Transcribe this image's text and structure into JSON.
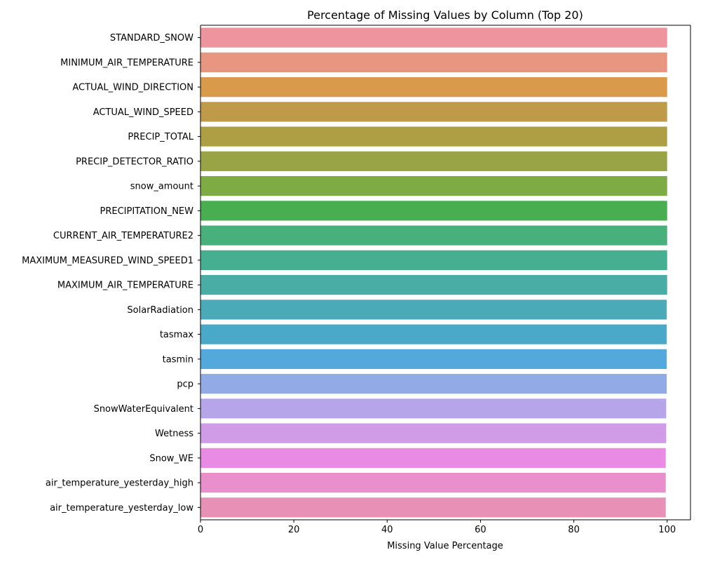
{
  "chart_data": {
    "type": "bar",
    "orientation": "horizontal",
    "title": "Percentage of Missing Values by Column (Top 20)",
    "xlabel": "Missing Value Percentage",
    "ylabel": "",
    "xlim": [
      0,
      105
    ],
    "xticks": [
      0,
      20,
      40,
      60,
      80,
      100
    ],
    "grid": false,
    "legend": false,
    "categories": [
      "STANDARD_SNOW",
      "MINIMUM_AIR_TEMPERATURE",
      "ACTUAL_WIND_DIRECTION",
      "ACTUAL_WIND_SPEED",
      "PRECIP_TOTAL",
      "PRECIP_DETECTOR_RATIO",
      "snow_amount",
      "PRECIPITATION_NEW",
      "CURRENT_AIR_TEMPERATURE2",
      "MAXIMUM_MEASURED_WIND_SPEED1",
      "MAXIMUM_AIR_TEMPERATURE",
      "SolarRadiation",
      "tasmax",
      "tasmin",
      "pcp",
      "SnowWaterEquivalent",
      "Wetness",
      "Snow_WE",
      "air_temperature_yesterday_high",
      "air_temperature_yesterday_low"
    ],
    "values": [
      100.0,
      100.0,
      100.0,
      100.0,
      100.0,
      100.0,
      100.0,
      100.0,
      100.0,
      100.0,
      100.0,
      99.9,
      99.9,
      99.9,
      99.9,
      99.8,
      99.8,
      99.7,
      99.7,
      99.7
    ],
    "colors": [
      "#ee949e",
      "#e8967f",
      "#da9a4c",
      "#bf9a49",
      "#ae9f45",
      "#99a446",
      "#7fab44",
      "#49ae50",
      "#48b07a",
      "#47af91",
      "#49aca5",
      "#4aaab7",
      "#4aa9c8",
      "#53a9db",
      "#92abe6",
      "#b7a5ea",
      "#d09be7",
      "#e98be5",
      "#e88fcc",
      "#e890b6"
    ]
  }
}
